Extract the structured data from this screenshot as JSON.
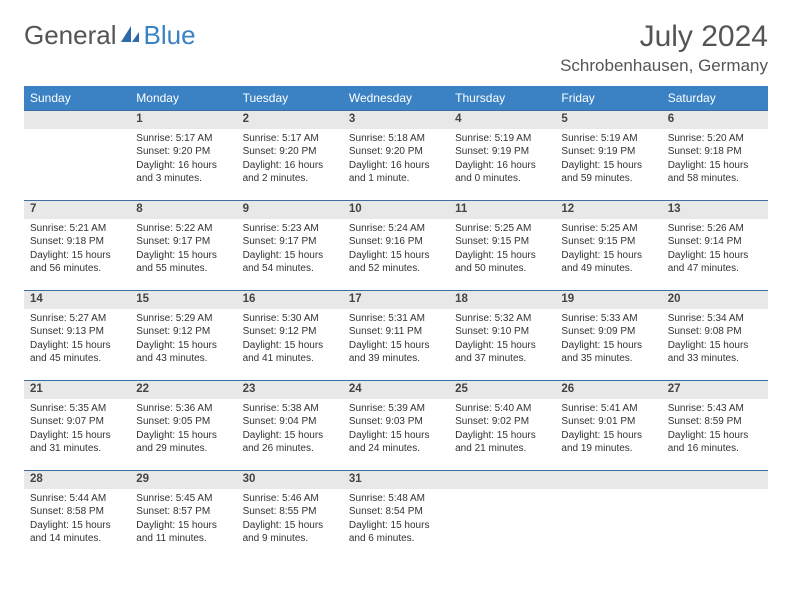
{
  "brand": {
    "part1": "General",
    "part2": "Blue"
  },
  "title": "July 2024",
  "location": "Schrobenhausen, Germany",
  "colors": {
    "header_bg": "#3b82c4",
    "header_text": "#ffffff",
    "daynum_bg": "#e8e8e8",
    "row_divider": "#3b6fa0",
    "body_text": "#333333",
    "title_text": "#555555"
  },
  "weekdays": [
    "Sunday",
    "Monday",
    "Tuesday",
    "Wednesday",
    "Thursday",
    "Friday",
    "Saturday"
  ],
  "weeks": [
    [
      null,
      {
        "d": "1",
        "sr": "5:17 AM",
        "ss": "9:20 PM",
        "dl": "16 hours and 3 minutes."
      },
      {
        "d": "2",
        "sr": "5:17 AM",
        "ss": "9:20 PM",
        "dl": "16 hours and 2 minutes."
      },
      {
        "d": "3",
        "sr": "5:18 AM",
        "ss": "9:20 PM",
        "dl": "16 hours and 1 minute."
      },
      {
        "d": "4",
        "sr": "5:19 AM",
        "ss": "9:19 PM",
        "dl": "16 hours and 0 minutes."
      },
      {
        "d": "5",
        "sr": "5:19 AM",
        "ss": "9:19 PM",
        "dl": "15 hours and 59 minutes."
      },
      {
        "d": "6",
        "sr": "5:20 AM",
        "ss": "9:18 PM",
        "dl": "15 hours and 58 minutes."
      }
    ],
    [
      {
        "d": "7",
        "sr": "5:21 AM",
        "ss": "9:18 PM",
        "dl": "15 hours and 56 minutes."
      },
      {
        "d": "8",
        "sr": "5:22 AM",
        "ss": "9:17 PM",
        "dl": "15 hours and 55 minutes."
      },
      {
        "d": "9",
        "sr": "5:23 AM",
        "ss": "9:17 PM",
        "dl": "15 hours and 54 minutes."
      },
      {
        "d": "10",
        "sr": "5:24 AM",
        "ss": "9:16 PM",
        "dl": "15 hours and 52 minutes."
      },
      {
        "d": "11",
        "sr": "5:25 AM",
        "ss": "9:15 PM",
        "dl": "15 hours and 50 minutes."
      },
      {
        "d": "12",
        "sr": "5:25 AM",
        "ss": "9:15 PM",
        "dl": "15 hours and 49 minutes."
      },
      {
        "d": "13",
        "sr": "5:26 AM",
        "ss": "9:14 PM",
        "dl": "15 hours and 47 minutes."
      }
    ],
    [
      {
        "d": "14",
        "sr": "5:27 AM",
        "ss": "9:13 PM",
        "dl": "15 hours and 45 minutes."
      },
      {
        "d": "15",
        "sr": "5:29 AM",
        "ss": "9:12 PM",
        "dl": "15 hours and 43 minutes."
      },
      {
        "d": "16",
        "sr": "5:30 AM",
        "ss": "9:12 PM",
        "dl": "15 hours and 41 minutes."
      },
      {
        "d": "17",
        "sr": "5:31 AM",
        "ss": "9:11 PM",
        "dl": "15 hours and 39 minutes."
      },
      {
        "d": "18",
        "sr": "5:32 AM",
        "ss": "9:10 PM",
        "dl": "15 hours and 37 minutes."
      },
      {
        "d": "19",
        "sr": "5:33 AM",
        "ss": "9:09 PM",
        "dl": "15 hours and 35 minutes."
      },
      {
        "d": "20",
        "sr": "5:34 AM",
        "ss": "9:08 PM",
        "dl": "15 hours and 33 minutes."
      }
    ],
    [
      {
        "d": "21",
        "sr": "5:35 AM",
        "ss": "9:07 PM",
        "dl": "15 hours and 31 minutes."
      },
      {
        "d": "22",
        "sr": "5:36 AM",
        "ss": "9:05 PM",
        "dl": "15 hours and 29 minutes."
      },
      {
        "d": "23",
        "sr": "5:38 AM",
        "ss": "9:04 PM",
        "dl": "15 hours and 26 minutes."
      },
      {
        "d": "24",
        "sr": "5:39 AM",
        "ss": "9:03 PM",
        "dl": "15 hours and 24 minutes."
      },
      {
        "d": "25",
        "sr": "5:40 AM",
        "ss": "9:02 PM",
        "dl": "15 hours and 21 minutes."
      },
      {
        "d": "26",
        "sr": "5:41 AM",
        "ss": "9:01 PM",
        "dl": "15 hours and 19 minutes."
      },
      {
        "d": "27",
        "sr": "5:43 AM",
        "ss": "8:59 PM",
        "dl": "15 hours and 16 minutes."
      }
    ],
    [
      {
        "d": "28",
        "sr": "5:44 AM",
        "ss": "8:58 PM",
        "dl": "15 hours and 14 minutes."
      },
      {
        "d": "29",
        "sr": "5:45 AM",
        "ss": "8:57 PM",
        "dl": "15 hours and 11 minutes."
      },
      {
        "d": "30",
        "sr": "5:46 AM",
        "ss": "8:55 PM",
        "dl": "15 hours and 9 minutes."
      },
      {
        "d": "31",
        "sr": "5:48 AM",
        "ss": "8:54 PM",
        "dl": "15 hours and 6 minutes."
      },
      null,
      null,
      null
    ]
  ],
  "labels": {
    "sunrise": "Sunrise:",
    "sunset": "Sunset:",
    "daylight": "Daylight:"
  }
}
